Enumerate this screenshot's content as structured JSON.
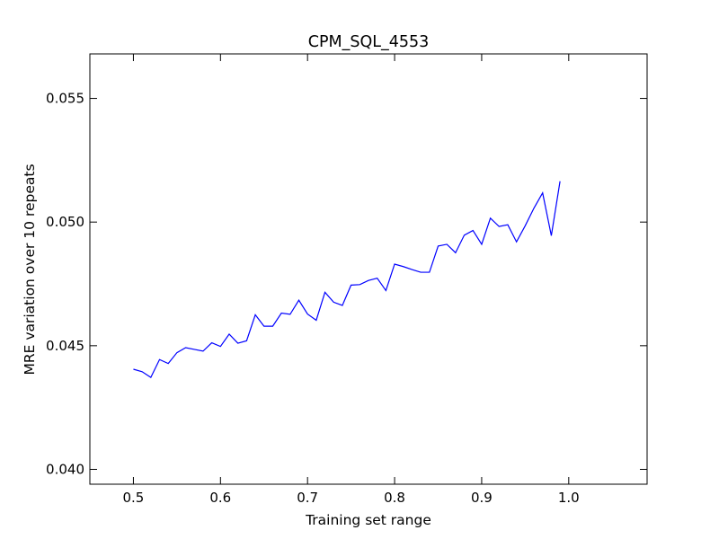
{
  "chart_data": {
    "type": "line",
    "title": "CPM_SQL_4553",
    "xlabel": "Training set range",
    "ylabel": "MRE variation over 10 repeats",
    "xlim": [
      0.45,
      1.09
    ],
    "ylim": [
      0.0394,
      0.0568
    ],
    "x_ticks": [
      0.5,
      0.6,
      0.7,
      0.8,
      0.9,
      1.0
    ],
    "x_tick_labels": [
      "0.5",
      "0.6",
      "0.7",
      "0.8",
      "0.9",
      "1.0"
    ],
    "y_ticks": [
      0.04,
      0.045,
      0.05,
      0.055
    ],
    "y_tick_labels": [
      "0.040",
      "0.045",
      "0.050",
      "0.055"
    ],
    "grid": false,
    "legend": "none",
    "series": [
      {
        "color": "#0000ff",
        "x": [
          0.5,
          0.51,
          0.52,
          0.53,
          0.54,
          0.55,
          0.56,
          0.57,
          0.58,
          0.59,
          0.6,
          0.61,
          0.62,
          0.63,
          0.64,
          0.65,
          0.66,
          0.67,
          0.68,
          0.69,
          0.7,
          0.71,
          0.72,
          0.73,
          0.74,
          0.75,
          0.76,
          0.77,
          0.78,
          0.79,
          0.8,
          0.81,
          0.82,
          0.83,
          0.84,
          0.85,
          0.86,
          0.87,
          0.88,
          0.89,
          0.9,
          0.91,
          0.92,
          0.93,
          0.94,
          0.95,
          0.96,
          0.97,
          0.98,
          0.99
        ],
        "y": [
          0.04405,
          0.04395,
          0.04372,
          0.04444,
          0.04428,
          0.04472,
          0.04492,
          0.04485,
          0.04478,
          0.04512,
          0.04497,
          0.04547,
          0.0451,
          0.0452,
          0.04625,
          0.04579,
          0.04579,
          0.04632,
          0.04627,
          0.04684,
          0.04628,
          0.04603,
          0.04716,
          0.04676,
          0.04663,
          0.04745,
          0.04747,
          0.04764,
          0.04773,
          0.04723,
          0.0483,
          0.0482,
          0.04808,
          0.04797,
          0.04797,
          0.04903,
          0.0491,
          0.04876,
          0.04947,
          0.04966,
          0.0491,
          0.05016,
          0.04982,
          0.04989,
          0.0492,
          0.04985,
          0.05056,
          0.05118,
          0.04945,
          0.05165
        ]
      }
    ]
  }
}
